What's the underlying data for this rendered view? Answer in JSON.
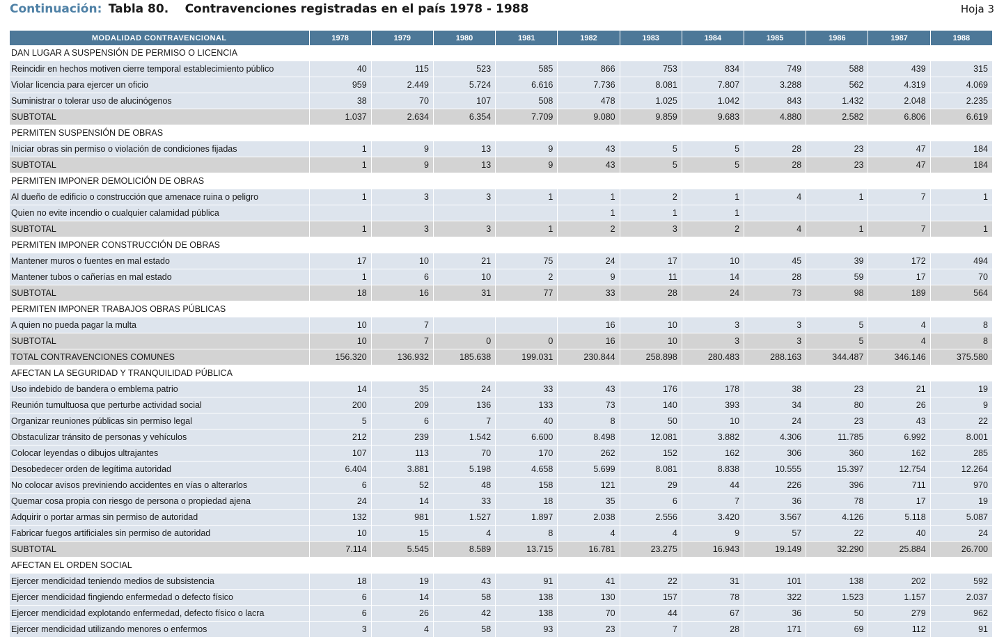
{
  "header": {
    "continuation": "Continuación:",
    "table_no": "Tabla 80.",
    "title": "Contravenciones registradas en el país 1978 - 1988",
    "sheet": "Hoja 3"
  },
  "columns": [
    "MODALIDAD CONTRAVENCIONAL",
    "1978",
    "1979",
    "1980",
    "1981",
    "1982",
    "1983",
    "1984",
    "1985",
    "1986",
    "1987",
    "1988"
  ],
  "rows": [
    {
      "type": "section",
      "label": "DAN LUGAR A SUSPENSIÓN DE PERMISO O LICENCIA"
    },
    {
      "type": "data",
      "label": "Reincidir en hechos motiven cierre temporal establecimiento público",
      "values": [
        "40",
        "115",
        "523",
        "585",
        "866",
        "753",
        "834",
        "749",
        "588",
        "439",
        "315"
      ]
    },
    {
      "type": "data",
      "label": "Violar licencia para ejercer un oficio",
      "values": [
        "959",
        "2.449",
        "5.724",
        "6.616",
        "7.736",
        "8.081",
        "7.807",
        "3.288",
        "562",
        "4.319",
        "4.069"
      ]
    },
    {
      "type": "data",
      "label": "Suministrar o tolerar uso de alucinógenos",
      "values": [
        "38",
        "70",
        "107",
        "508",
        "478",
        "1.025",
        "1.042",
        "843",
        "1.432",
        "2.048",
        "2.235"
      ]
    },
    {
      "type": "subtotal",
      "label": "SUBTOTAL",
      "values": [
        "1.037",
        "2.634",
        "6.354",
        "7.709",
        "9.080",
        "9.859",
        "9.683",
        "4.880",
        "2.582",
        "6.806",
        "6.619"
      ]
    },
    {
      "type": "section",
      "label": "PERMITEN SUSPENSIÓN DE OBRAS"
    },
    {
      "type": "data",
      "label": "Iniciar obras sin permiso o violación de condiciones fijadas",
      "values": [
        "1",
        "9",
        "13",
        "9",
        "43",
        "5",
        "5",
        "28",
        "23",
        "47",
        "184"
      ]
    },
    {
      "type": "subtotal",
      "label": "SUBTOTAL",
      "values": [
        "1",
        "9",
        "13",
        "9",
        "43",
        "5",
        "5",
        "28",
        "23",
        "47",
        "184"
      ]
    },
    {
      "type": "section",
      "label": "PERMITEN IMPONER DEMOLICIÓN DE OBRAS"
    },
    {
      "type": "data",
      "label": "Al dueño de edificio o construcción que amenace ruina o peligro",
      "values": [
        "1",
        "3",
        "3",
        "1",
        "1",
        "2",
        "1",
        "4",
        "1",
        "7",
        "1"
      ]
    },
    {
      "type": "data",
      "label": "Quien no evite incendio o cualquier calamidad pública",
      "values": [
        "",
        "",
        "",
        "",
        "1",
        "1",
        "1",
        "",
        "",
        "",
        ""
      ]
    },
    {
      "type": "subtotal",
      "label": "SUBTOTAL",
      "values": [
        "1",
        "3",
        "3",
        "1",
        "2",
        "3",
        "2",
        "4",
        "1",
        "7",
        "1"
      ]
    },
    {
      "type": "section",
      "label": "PERMITEN IMPONER CONSTRUCCIÓN DE OBRAS"
    },
    {
      "type": "data",
      "label": "Mantener muros o fuentes en mal estado",
      "values": [
        "17",
        "10",
        "21",
        "75",
        "24",
        "17",
        "10",
        "45",
        "39",
        "172",
        "494"
      ]
    },
    {
      "type": "data",
      "label": "Mantener tubos o cañerías en mal estado",
      "values": [
        "1",
        "6",
        "10",
        "2",
        "9",
        "11",
        "14",
        "28",
        "59",
        "17",
        "70"
      ]
    },
    {
      "type": "subtotal",
      "label": "SUBTOTAL",
      "values": [
        "18",
        "16",
        "31",
        "77",
        "33",
        "28",
        "24",
        "73",
        "98",
        "189",
        "564"
      ]
    },
    {
      "type": "section",
      "label": "PERMITEN IMPONER TRABAJOS OBRAS PÚBLICAS"
    },
    {
      "type": "data",
      "label": "A quien no pueda pagar la multa",
      "values": [
        "10",
        "7",
        "",
        "",
        "16",
        "10",
        "3",
        "3",
        "5",
        "4",
        "8"
      ]
    },
    {
      "type": "subtotal",
      "label": "SUBTOTAL",
      "values": [
        "10",
        "7",
        "0",
        "0",
        "16",
        "10",
        "3",
        "3",
        "5",
        "4",
        "8"
      ]
    },
    {
      "type": "subtotal",
      "label": "TOTAL CONTRAVENCIONES COMUNES",
      "values": [
        "156.320",
        "136.932",
        "185.638",
        "199.031",
        "230.844",
        "258.898",
        "280.483",
        "288.163",
        "344.487",
        "346.146",
        "375.580"
      ]
    },
    {
      "type": "section",
      "label": "AFECTAN LA SEGURIDAD Y TRANQUILIDAD PÚBLICA"
    },
    {
      "type": "data",
      "label": "Uso indebido de bandera o emblema patrio",
      "values": [
        "14",
        "35",
        "24",
        "33",
        "43",
        "176",
        "178",
        "38",
        "23",
        "21",
        "19"
      ]
    },
    {
      "type": "data",
      "label": "Reunión tumultuosa que perturbe actividad social",
      "values": [
        "200",
        "209",
        "136",
        "133",
        "73",
        "140",
        "393",
        "34",
        "80",
        "26",
        "9"
      ]
    },
    {
      "type": "data",
      "label": "Organizar reuniones públicas sin permiso legal",
      "values": [
        "5",
        "6",
        "7",
        "40",
        "8",
        "50",
        "10",
        "24",
        "23",
        "43",
        "22"
      ]
    },
    {
      "type": "data",
      "label": "Obstaculizar tránsito de personas y vehículos",
      "values": [
        "212",
        "239",
        "1.542",
        "6.600",
        "8.498",
        "12.081",
        "3.882",
        "4.306",
        "11.785",
        "6.992",
        "8.001"
      ]
    },
    {
      "type": "data",
      "label": "Colocar leyendas o dibujos ultrajantes",
      "values": [
        "107",
        "113",
        "70",
        "170",
        "262",
        "152",
        "162",
        "306",
        "360",
        "162",
        "285"
      ]
    },
    {
      "type": "data",
      "label": "Desobedecer orden de legítima autoridad",
      "values": [
        "6.404",
        "3.881",
        "5.198",
        "4.658",
        "5.699",
        "8.081",
        "8.838",
        "10.555",
        "15.397",
        "12.754",
        "12.264"
      ]
    },
    {
      "type": "data",
      "label": "No colocar avisos previniendo accidentes en vías o alterarlos",
      "values": [
        "6",
        "52",
        "48",
        "158",
        "121",
        "29",
        "44",
        "226",
        "396",
        "711",
        "970"
      ]
    },
    {
      "type": "data",
      "label": "Quemar cosa propia con riesgo de persona o propiedad ajena",
      "values": [
        "24",
        "14",
        "33",
        "18",
        "35",
        "6",
        "7",
        "36",
        "78",
        "17",
        "19"
      ]
    },
    {
      "type": "data",
      "label": "Adquirir o portar armas sin permiso de autoridad",
      "values": [
        "132",
        "981",
        "1.527",
        "1.897",
        "2.038",
        "2.556",
        "3.420",
        "3.567",
        "4.126",
        "5.118",
        "5.087"
      ]
    },
    {
      "type": "data",
      "label": "Fabricar fuegos artificiales sin permiso de autoridad",
      "values": [
        "10",
        "15",
        "4",
        "8",
        "4",
        "4",
        "9",
        "57",
        "22",
        "40",
        "24"
      ]
    },
    {
      "type": "subtotal",
      "label": "SUBTOTAL",
      "values": [
        "7.114",
        "5.545",
        "8.589",
        "13.715",
        "16.781",
        "23.275",
        "16.943",
        "19.149",
        "32.290",
        "25.884",
        "26.700"
      ]
    },
    {
      "type": "section",
      "label": "AFECTAN EL ORDEN SOCIAL"
    },
    {
      "type": "data",
      "label": "Ejercer mendicidad teniendo medios de subsistencia",
      "values": [
        "18",
        "19",
        "43",
        "91",
        "41",
        "22",
        "31",
        "101",
        "138",
        "202",
        "592"
      ]
    },
    {
      "type": "data",
      "label": "Ejercer mendicidad fingiendo enfermedad o defecto físico",
      "values": [
        "6",
        "14",
        "58",
        "138",
        "130",
        "157",
        "78",
        "322",
        "1.523",
        "1.157",
        "2.037"
      ]
    },
    {
      "type": "data",
      "label": "Ejercer mendicidad explotando enfermedad, defecto físico o lacra",
      "values": [
        "6",
        "26",
        "42",
        "138",
        "70",
        "44",
        "67",
        "36",
        "50",
        "279",
        "962"
      ]
    },
    {
      "type": "data",
      "label": "Ejercer mendicidad utilizando menores o enfermos",
      "values": [
        "3",
        "4",
        "58",
        "93",
        "23",
        "7",
        "28",
        "171",
        "69",
        "112",
        "91"
      ]
    }
  ]
}
